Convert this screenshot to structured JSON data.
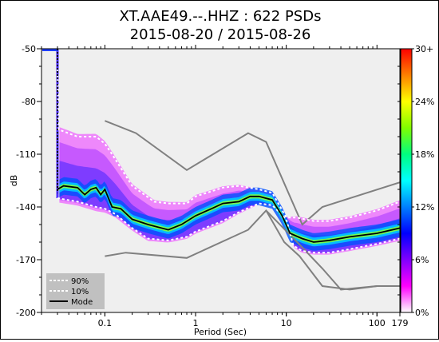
{
  "chart_data": {
    "type": "heatmap",
    "title": "XT.AAE49.--.HHZ : 622 PSDs",
    "subtitle": "2015-08-20 / 2015-08-26",
    "xlabel": "Period (Sec)",
    "ylabel": "dB",
    "x_scale": "log",
    "xlim": [
      0.02,
      179
    ],
    "ylim": [
      -200,
      -50
    ],
    "x_ticks": [
      {
        "value": 0.1,
        "label": "0.1"
      },
      {
        "value": 1,
        "label": "1"
      },
      {
        "value": 10,
        "label": "10"
      },
      {
        "value": 100,
        "label": "100"
      },
      {
        "value": 179,
        "label": "179"
      }
    ],
    "y_ticks": [
      {
        "value": -50,
        "label": "-50"
      },
      {
        "value": -80,
        "label": "-80"
      },
      {
        "value": -110,
        "label": "-110"
      },
      {
        "value": -140,
        "label": "-140"
      },
      {
        "value": -170,
        "label": "-170"
      },
      {
        "value": -200,
        "label": "-200"
      }
    ],
    "colorbar": {
      "labels": [
        "30+",
        "24%",
        "18%",
        "12%",
        "6%",
        "0%"
      ],
      "colors": [
        "#ff0000",
        "#ff8000",
        "#ffff00",
        "#80ff00",
        "#00ff80",
        "#00ffff",
        "#0080ff",
        "#0000ff",
        "#8000ff",
        "#ff00ff",
        "#ffffff"
      ]
    },
    "legend": {
      "position": "bottom-left",
      "entries": [
        {
          "label": "90%",
          "style": "dashed",
          "color": "#ffffff"
        },
        {
          "label": "10%",
          "style": "dashed",
          "color": "#ffffff"
        },
        {
          "label": "Mode",
          "style": "solid",
          "color": "#000000"
        }
      ]
    },
    "noise_models": {
      "color": "#808080",
      "high": {
        "x": [
          0.1,
          0.22,
          0.8,
          3.8,
          6,
          15,
          25,
          179
        ],
        "y": [
          -91,
          -98,
          -119,
          -98,
          -103,
          -150,
          -140,
          -126
        ]
      },
      "low": {
        "x": [
          0.1,
          0.17,
          0.8,
          3.8,
          6,
          15,
          25,
          40,
          100,
          179
        ],
        "y": [
          -168,
          -166,
          -169,
          -153,
          -142,
          -163,
          -175,
          -187,
          -185,
          -185
        ]
      },
      "low2": {
        "x": [
          6,
          9.5,
          14,
          25,
          50,
          100,
          179
        ],
        "y": [
          -142,
          -160,
          -168,
          -185,
          -187,
          -185,
          -185
        ]
      }
    },
    "series": [
      {
        "name": "90%",
        "x": [
          0.03,
          0.031,
          0.05,
          0.08,
          0.1,
          0.12,
          0.2,
          0.35,
          0.5,
          0.8,
          1,
          2,
          3,
          5,
          7,
          10,
          13,
          20,
          30,
          50,
          100,
          179
        ],
        "y": [
          -62,
          -96,
          -100,
          -100,
          -104,
          -110,
          -128,
          -137,
          -138,
          -138,
          -134,
          -129,
          -128,
          -130,
          -132,
          -146,
          -146,
          -148,
          -148,
          -146,
          -142,
          -137
        ]
      },
      {
        "name": "10%",
        "x": [
          0.03,
          0.05,
          0.08,
          0.1,
          0.13,
          0.2,
          0.3,
          0.5,
          0.8,
          1,
          2,
          3,
          5,
          7,
          10,
          12,
          15,
          20,
          30,
          50,
          100,
          179
        ],
        "y": [
          -135,
          -137,
          -140,
          -141,
          -144,
          -152,
          -158,
          -159,
          -157,
          -154,
          -148,
          -143,
          -138,
          -139,
          -147,
          -162,
          -165,
          -166,
          -166,
          -164,
          -161,
          -158
        ]
      },
      {
        "name": "Mode",
        "x": [
          0.03,
          0.035,
          0.05,
          0.06,
          0.07,
          0.08,
          0.09,
          0.1,
          0.12,
          0.15,
          0.2,
          0.3,
          0.5,
          0.7,
          1,
          1.5,
          2,
          3,
          4,
          5,
          7,
          9,
          11,
          15,
          20,
          30,
          50,
          100,
          179
        ],
        "y": [
          -130,
          -128,
          -129,
          -133,
          -130,
          -129,
          -133,
          -130,
          -140,
          -141,
          -147,
          -150,
          -153,
          -150,
          -145,
          -141,
          -138,
          -137,
          -134,
          -134,
          -136,
          -145,
          -155,
          -158,
          -160,
          -159,
          -157,
          -155,
          -152
        ]
      }
    ]
  }
}
